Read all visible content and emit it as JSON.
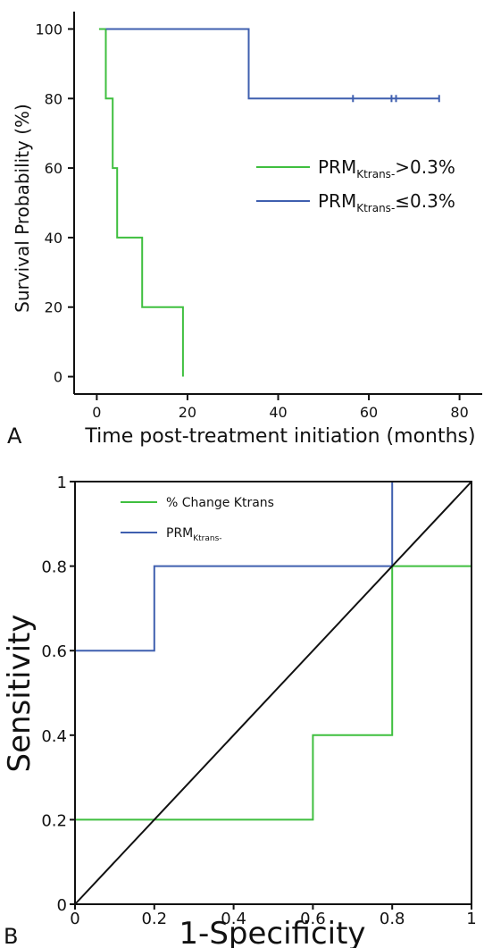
{
  "chart_data": [
    {
      "panel": "A",
      "type": "line",
      "subtype": "kaplan-meier",
      "xlabel": "Time post-treatment initiation (months)",
      "ylabel": "Survival Probability (%)",
      "xlim": [
        -5,
        85
      ],
      "ylim": [
        -5,
        105
      ],
      "xticks": [
        0,
        20,
        40,
        60,
        80
      ],
      "yticks": [
        0,
        20,
        40,
        60,
        80,
        100
      ],
      "grid": false,
      "legend_position": "center-right",
      "series": [
        {
          "name_main": "PRM",
          "name_sub": "Ktrans-",
          "name_tail": ">0.3%",
          "color": "#3fbf3f",
          "x": [
            0.5,
            2,
            2,
            3.5,
            3.5,
            4.5,
            4.5,
            10,
            10,
            19,
            19
          ],
          "y": [
            100,
            100,
            80,
            80,
            60,
            60,
            40,
            40,
            20,
            20,
            0
          ],
          "censored": []
        },
        {
          "name_main": "PRM",
          "name_sub": "Ktrans-",
          "name_tail": "≤0.3%",
          "color": "#3f5faf",
          "x": [
            2,
            33.5,
            33.5,
            75.5
          ],
          "y": [
            100,
            100,
            80,
            80
          ],
          "censored": [
            56.5,
            65,
            66,
            75.5
          ]
        }
      ]
    },
    {
      "panel": "B",
      "type": "line",
      "subtype": "roc",
      "xlabel": "1-Specificity",
      "ylabel": "Sensitivity",
      "xlim": [
        0,
        1
      ],
      "ylim": [
        0,
        1
      ],
      "xticks": [
        0,
        0.2,
        0.4,
        0.6,
        0.8,
        1
      ],
      "yticks": [
        0,
        0.2,
        0.4,
        0.6,
        0.8,
        1
      ],
      "tick_labels": [
        "0",
        "0.2",
        "0.4",
        "0.6",
        "0.8",
        "1"
      ],
      "grid": false,
      "legend_position": "top-left",
      "series": [
        {
          "name": "% Change Ktrans",
          "color": "#3fbf3f",
          "x": [
            0,
            0,
            0.6,
            0.6,
            0.8,
            0.8,
            1,
            1
          ],
          "y": [
            0,
            0.2,
            0.2,
            0.4,
            0.4,
            0.8,
            0.8,
            1
          ]
        },
        {
          "name_main": "PRM",
          "name_sub": "Ktrans-",
          "color": "#3f5faf",
          "x": [
            0,
            0,
            0.2,
            0.2,
            0.8,
            0.8,
            1
          ],
          "y": [
            0,
            0.6,
            0.6,
            0.8,
            0.8,
            1,
            1
          ]
        }
      ],
      "reference_line": {
        "x": [
          0,
          1
        ],
        "y": [
          0,
          1
        ],
        "color": "#111111"
      }
    }
  ],
  "panel_labels": {
    "a": "A",
    "b": "B"
  }
}
